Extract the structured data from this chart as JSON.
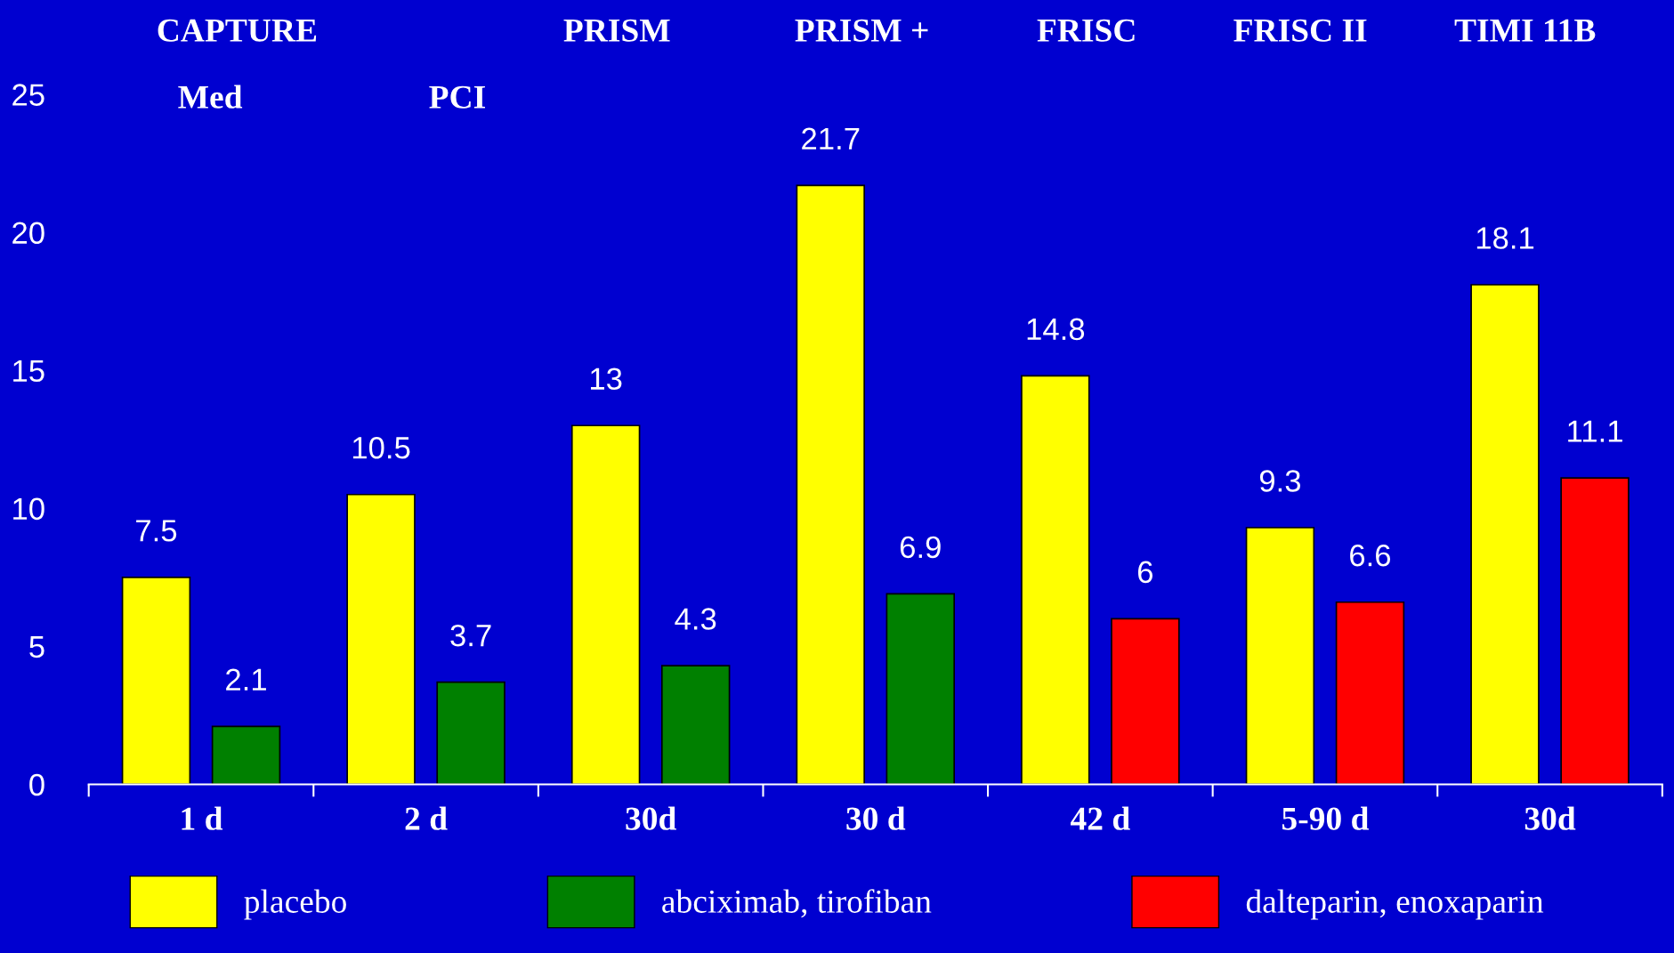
{
  "chart_data": {
    "type": "bar",
    "categories": [
      "1 d",
      "2 d",
      "30d",
      "30 d",
      "42 d",
      "5-90 d",
      "30d"
    ],
    "series": [
      {
        "name": "placebo",
        "color": "#ffff00",
        "values": [
          7.5,
          10.5,
          13,
          21.7,
          14.8,
          9.3,
          18.1
        ]
      },
      {
        "name": "abciximab, tirofiban",
        "color": "#008000",
        "values": [
          2.1,
          3.7,
          4.3,
          6.9,
          null,
          null,
          null
        ]
      },
      {
        "name": "dalteparin, enoxaparin",
        "color": "#ff0000",
        "values": [
          null,
          null,
          null,
          null,
          6,
          6.6,
          11.1
        ]
      }
    ],
    "ylim": [
      0,
      25
    ],
    "yticks": [
      0,
      5,
      10,
      15,
      20,
      25
    ],
    "data_labels": true,
    "grid": false,
    "legend": "bottom",
    "annotations": [
      "CAPTURE",
      "Med",
      "PCI",
      "PRISM",
      "PRISM +",
      "FRISC",
      "FRISC II",
      "TIMI 11B"
    ]
  }
}
